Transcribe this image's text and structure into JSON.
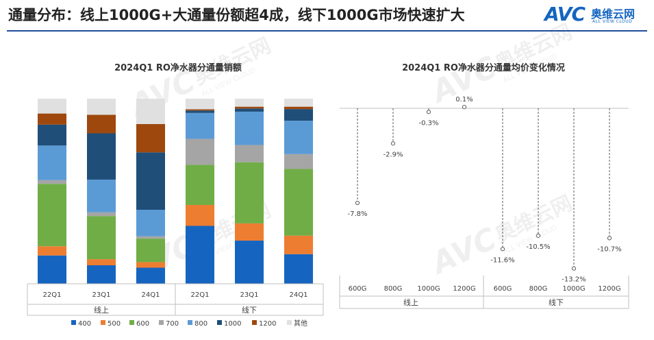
{
  "header": {
    "title": "通量分布：线上1000G+大通量份额超4成，线下1000G市场快速扩大",
    "logo_mark": "AVC",
    "logo_cn": "奥维云网",
    "logo_en": "ALL VIEW CLOUD",
    "accent_color": "#1f4e9c"
  },
  "watermark": {
    "mark": "AVC",
    "cn": "奥维云网",
    "en": "ALL VIEW CLOUD"
  },
  "chart_data": [
    {
      "type": "bar",
      "stacked": true,
      "normalized": true,
      "title": "2024Q1 RO净水器分通量销额",
      "groups": [
        {
          "name": "线上",
          "categories": [
            "22Q1",
            "23Q1",
            "24Q1"
          ]
        },
        {
          "name": "线下",
          "categories": [
            "22Q1",
            "23Q1",
            "24Q1"
          ]
        }
      ],
      "categories": [
        "22Q1",
        "23Q1",
        "24Q1",
        "22Q1",
        "23Q1",
        "24Q1"
      ],
      "series": [
        {
          "name": "400",
          "color": "#1565c0",
          "values": [
            15.3,
            10.0,
            8.7,
            31.3,
            23.3,
            16.0
          ]
        },
        {
          "name": "500",
          "color": "#ed7d31",
          "values": [
            5.0,
            3.3,
            3.0,
            11.3,
            9.3,
            10.0
          ]
        },
        {
          "name": "600",
          "color": "#70ad47",
          "values": [
            33.7,
            23.3,
            12.7,
            21.7,
            33.0,
            36.0
          ]
        },
        {
          "name": "700",
          "color": "#a5a5a5",
          "values": [
            2.0,
            2.0,
            1.3,
            14.0,
            9.3,
            8.0
          ]
        },
        {
          "name": "800",
          "color": "#5b9bd5",
          "values": [
            18.7,
            17.7,
            14.3,
            14.0,
            18.0,
            18.0
          ]
        },
        {
          "name": "1000",
          "color": "#1f4e79",
          "values": [
            11.3,
            25.0,
            31.0,
            1.3,
            1.7,
            6.3
          ]
        },
        {
          "name": "1200",
          "color": "#9e480e",
          "values": [
            6.0,
            10.0,
            15.3,
            0.7,
            1.0,
            1.3
          ]
        },
        {
          "name": "其他",
          "color": "#e0e0e0",
          "values": [
            8.0,
            8.7,
            13.7,
            5.7,
            4.3,
            4.3
          ]
        }
      ],
      "ylim": [
        0,
        100
      ],
      "legend": "bottom"
    },
    {
      "type": "scatter",
      "style": "lollipop",
      "title": "2024Q1 RO净水器分通量均价变化情况",
      "groups": [
        {
          "name": "线上",
          "categories": [
            "600G",
            "800G",
            "1000G",
            "1200G"
          ]
        },
        {
          "name": "线下",
          "categories": [
            "600G",
            "800G",
            "1000G",
            "1200G"
          ]
        }
      ],
      "x": [
        "600G",
        "800G",
        "1000G",
        "1200G",
        "600G",
        "800G",
        "1000G",
        "1200G"
      ],
      "values": [
        -7.8,
        -2.9,
        -0.3,
        0.1,
        -11.6,
        -10.5,
        -13.2,
        -10.7
      ],
      "labels": [
        "-7.8%",
        "-2.9%",
        "-0.3%",
        "0.1%",
        "-11.6%",
        "-10.5%",
        "-13.2%",
        "-10.7%"
      ],
      "unit": "%",
      "ylim": [
        -15,
        0.5
      ]
    }
  ]
}
